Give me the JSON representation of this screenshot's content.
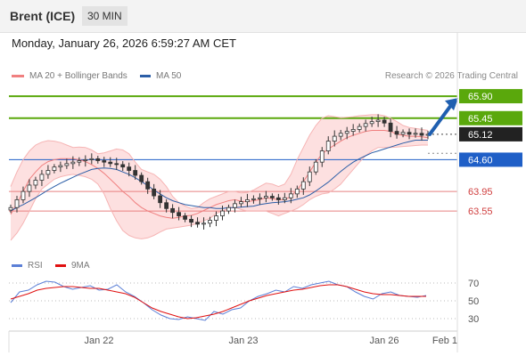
{
  "header": {
    "instrument": "Brent (ICE)",
    "interval": "30 MIN",
    "timestamp": "Monday, January 26, 2026 6:59:27 AM CET"
  },
  "credit": "Research © 2026 Trading Central",
  "legend": {
    "bollinger": "MA 20 + Bollinger Bands",
    "ma50": "MA 50",
    "rsi": "RSI",
    "ma9": "9MA"
  },
  "colors": {
    "bollinger": "#f08080",
    "band_fill": "#fde0e0",
    "ma50": "#2b5ea7",
    "resistance": "#5aa80c",
    "pivot": "#1f5fc7",
    "support": "#e88080",
    "current": "#222222",
    "candle": "#333333",
    "rsi": "#5b7fd6",
    "ma9": "#e01010",
    "arrow": "#1f5fb0"
  },
  "chart_data": [
    {
      "type": "candlestick",
      "title": "",
      "xlabel": "",
      "ylabel": "",
      "ylim": [
        62.95,
        66.12
      ],
      "x_ticks": [
        "Jan 22",
        "Jan 23",
        "Jan 26",
        "Feb 1"
      ],
      "levels": [
        {
          "value": 65.9,
          "label": "65.90",
          "kind": "resistance"
        },
        {
          "value": 65.45,
          "label": "65.45",
          "kind": "resistance"
        },
        {
          "value": 65.12,
          "label": "65.12",
          "kind": "current"
        },
        {
          "value": 64.6,
          "label": "64.60",
          "kind": "pivot"
        },
        {
          "value": 63.95,
          "label": "63.95",
          "kind": "support"
        },
        {
          "value": 63.55,
          "label": "63.55",
          "kind": "support"
        }
      ],
      "close_series": [
        63.62,
        63.78,
        63.95,
        64.08,
        64.18,
        64.3,
        64.38,
        64.45,
        64.48,
        64.52,
        64.55,
        64.58,
        64.6,
        64.62,
        64.58,
        64.55,
        64.52,
        64.5,
        64.45,
        64.38,
        64.28,
        64.15,
        64.0,
        63.86,
        63.72,
        63.6,
        63.52,
        63.45,
        63.38,
        63.32,
        63.28,
        63.3,
        63.36,
        63.45,
        63.55,
        63.62,
        63.7,
        63.74,
        63.78,
        63.8,
        63.82,
        63.85,
        63.82,
        63.78,
        63.82,
        63.9,
        64.0,
        64.15,
        64.35,
        64.55,
        64.78,
        64.98,
        65.08,
        65.14,
        65.18,
        65.22,
        65.28,
        65.34,
        65.38,
        65.41,
        65.35,
        65.18,
        65.12,
        65.16,
        65.12,
        65.14,
        65.1,
        65.12
      ],
      "bollinger_upper": [
        64.05,
        64.35,
        64.6,
        64.78,
        64.9,
        64.96,
        64.99,
        64.98,
        64.95,
        64.9,
        64.85,
        64.86,
        64.85,
        64.8,
        64.72,
        64.74,
        64.78,
        64.82,
        64.8,
        64.72,
        64.55,
        64.4,
        64.35,
        64.3,
        64.2,
        64.05,
        63.85,
        63.72,
        63.65,
        63.6,
        63.62,
        63.72,
        63.8,
        63.85,
        63.9,
        63.95,
        63.95,
        63.92,
        63.93,
        63.98,
        64.05,
        64.12,
        64.1,
        64.05,
        64.1,
        64.3,
        64.6,
        64.85,
        65.1,
        65.3,
        65.45,
        65.5,
        65.48,
        65.46,
        65.47,
        65.48,
        65.5,
        65.51,
        65.52,
        65.52,
        65.5,
        65.45,
        65.38,
        65.3,
        65.26,
        65.24,
        65.22,
        65.2
      ],
      "bollinger_lower": [
        62.95,
        63.1,
        63.3,
        63.55,
        63.8,
        64.0,
        64.1,
        64.2,
        64.25,
        64.28,
        64.3,
        64.28,
        64.25,
        64.2,
        64.1,
        63.9,
        63.6,
        63.35,
        63.15,
        63.05,
        63.0,
        62.98,
        63.0,
        63.05,
        63.12,
        63.18,
        63.2,
        63.22,
        63.24,
        63.26,
        63.3,
        63.35,
        63.4,
        63.5,
        63.55,
        63.6,
        63.62,
        63.58,
        63.55,
        63.55,
        63.55,
        63.55,
        63.5,
        63.45,
        63.5,
        63.55,
        63.6,
        63.68,
        63.78,
        63.85,
        63.9,
        63.92,
        64.0,
        64.1,
        64.25,
        64.4,
        64.55,
        64.68,
        64.78,
        64.85,
        64.85,
        64.85,
        64.86,
        64.87,
        64.88,
        64.89,
        64.9,
        64.9
      ],
      "ma20": [
        63.48,
        63.7,
        63.95,
        64.2,
        64.35,
        64.48,
        64.56,
        64.6,
        64.62,
        64.62,
        64.62,
        64.6,
        64.56,
        64.5,
        64.42,
        64.32,
        64.2,
        64.08,
        63.95,
        63.85,
        63.72,
        63.62,
        63.55,
        63.5,
        63.45,
        63.42,
        63.4,
        63.42,
        63.45,
        63.46,
        63.5,
        63.56,
        63.62,
        63.68,
        63.72,
        63.76,
        63.78,
        63.75,
        63.74,
        63.76,
        63.78,
        63.82,
        63.8,
        63.78,
        63.78,
        63.85,
        63.98,
        64.15,
        64.35,
        64.55,
        64.72,
        64.82,
        64.9,
        64.98,
        65.05,
        65.1,
        65.14,
        65.18,
        65.2,
        65.2,
        65.2,
        65.18,
        65.12,
        65.1,
        65.08,
        65.08,
        65.07,
        65.05
      ],
      "ma50": [
        63.55,
        63.62,
        63.68,
        63.75,
        63.82,
        63.9,
        63.98,
        64.05,
        64.12,
        64.18,
        64.24,
        64.3,
        64.35,
        64.4,
        64.42,
        64.43,
        64.42,
        64.4,
        64.35,
        64.3,
        64.23,
        64.15,
        64.07,
        63.98,
        63.9,
        63.82,
        63.76,
        63.72,
        63.68,
        63.66,
        63.64,
        63.62,
        63.62,
        63.6,
        63.6,
        63.62,
        63.62,
        63.63,
        63.64,
        63.65,
        63.68,
        63.7,
        63.72,
        63.73,
        63.74,
        63.76,
        63.79,
        63.82,
        63.88,
        63.96,
        64.05,
        64.14,
        64.25,
        64.36,
        64.46,
        64.55,
        64.62,
        64.68,
        64.74,
        64.78,
        64.82,
        64.86,
        64.9,
        64.94,
        64.97,
        65.0,
        65.0,
        65.0
      ],
      "forecast": {
        "from": 65.12,
        "to": 65.9
      }
    },
    {
      "type": "line",
      "title": "",
      "ylim": [
        20,
        78
      ],
      "y_ticks": [
        70,
        50,
        30
      ],
      "series": [
        {
          "name": "RSI",
          "values": [
            48,
            60,
            62,
            68,
            72,
            71,
            66,
            63,
            65,
            67,
            62,
            63,
            68,
            60,
            55,
            48,
            40,
            34,
            30,
            29,
            32,
            30,
            28,
            38,
            35,
            40,
            42,
            50,
            55,
            58,
            62,
            60,
            66,
            64,
            68,
            70,
            72,
            68,
            66,
            60,
            55,
            52,
            58,
            60,
            56,
            55,
            54,
            56
          ]
        },
        {
          "name": "9MA",
          "values": [
            52,
            55,
            58,
            62,
            64,
            65,
            66,
            66,
            65,
            64,
            64,
            62,
            60,
            58,
            54,
            48,
            42,
            38,
            35,
            32,
            30,
            31,
            33,
            35,
            38,
            42,
            46,
            50,
            53,
            56,
            58,
            60,
            62,
            63,
            65,
            67,
            68,
            68,
            66,
            63,
            60,
            58,
            57,
            57,
            56,
            55,
            55,
            55
          ]
        }
      ]
    }
  ]
}
